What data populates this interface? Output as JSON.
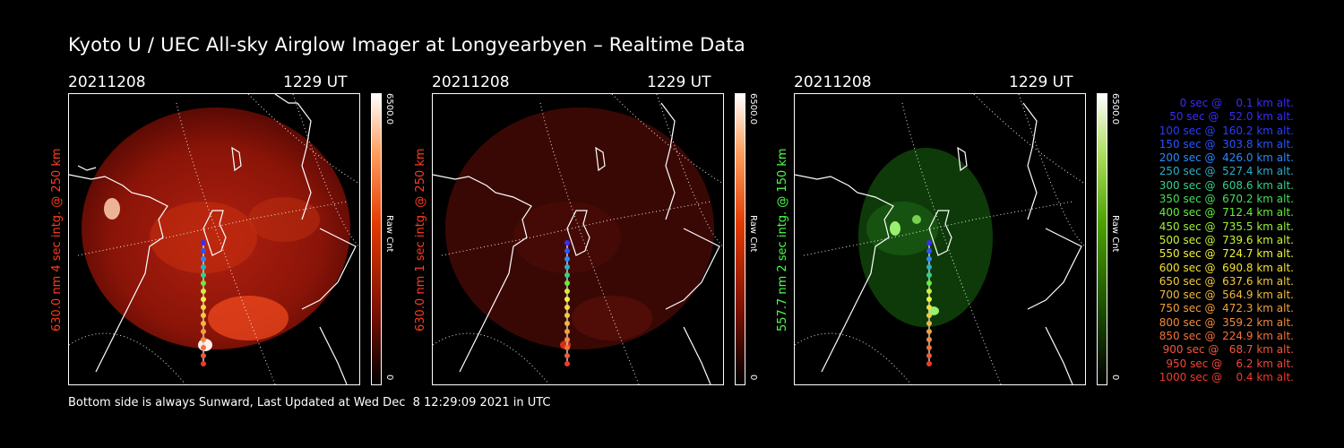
{
  "title": "Kyoto U / UEC All-sky Airglow Imager at Longyearbyen – Realtime Data",
  "footer": "Bottom side is always Sunward, Last Updated at Wed Dec  8 12:29:09 2021 in UTC",
  "panels": [
    {
      "date": "20211208",
      "time": "1229 UT",
      "side_label": "630.0 nm 4 sec intg. @ 250 km",
      "side_color": "#ff3b1f",
      "cbar_max": "6500.0",
      "cbar_min": "0",
      "cbar_unit": "Raw Cnt",
      "tone": "red-bright"
    },
    {
      "date": "20211208",
      "time": "1229 UT",
      "side_label": "630.0 nm 1 sec intg. @ 250 km",
      "side_color": "#ff3b1f",
      "cbar_max": "6500.0",
      "cbar_min": "0",
      "cbar_unit": "Raw Cnt",
      "tone": "red-dim"
    },
    {
      "date": "20211208",
      "time": "1229 UT",
      "side_label": "557.7 nm 2 sec intg. @ 150 km",
      "side_color": "#4cff4c",
      "cbar_max": "6500.0",
      "cbar_min": "0",
      "cbar_unit": "Raw Cnt",
      "tone": "green"
    }
  ],
  "legend": [
    {
      "text": "   0 sec @    0.1 km alt.",
      "color": "#3a2bff"
    },
    {
      "text": "  50 sec @   52.0 km alt.",
      "color": "#3a2bff"
    },
    {
      "text": " 100 sec @  160.2 km alt.",
      "color": "#2a3cff"
    },
    {
      "text": " 150 sec @  303.8 km alt.",
      "color": "#2a55ff"
    },
    {
      "text": " 200 sec @  426.0 km alt.",
      "color": "#2a88ff"
    },
    {
      "text": " 250 sec @  527.4 km alt.",
      "color": "#2ab0c8"
    },
    {
      "text": " 300 sec @  608.6 km alt.",
      "color": "#33d088"
    },
    {
      "text": " 350 sec @  670.2 km alt.",
      "color": "#44e05a"
    },
    {
      "text": " 400 sec @  712.4 km alt.",
      "color": "#66ee3a"
    },
    {
      "text": " 450 sec @  735.5 km alt.",
      "color": "#99f23a"
    },
    {
      "text": " 500 sec @  739.6 km alt.",
      "color": "#ccf23a"
    },
    {
      "text": " 550 sec @  724.7 km alt.",
      "color": "#f2f23a"
    },
    {
      "text": " 600 sec @  690.8 km alt.",
      "color": "#f2e03a"
    },
    {
      "text": " 650 sec @  637.6 km alt.",
      "color": "#f2cc3a"
    },
    {
      "text": " 700 sec @  564.9 km alt.",
      "color": "#f2b83a"
    },
    {
      "text": " 750 sec @  472.3 km alt.",
      "color": "#f2a03a"
    },
    {
      "text": " 800 sec @  359.2 km alt.",
      "color": "#f28a3a"
    },
    {
      "text": " 850 sec @  224.9 km alt.",
      "color": "#f2703a"
    },
    {
      "text": " 900 sec @   68.7 km alt.",
      "color": "#f2583a"
    },
    {
      "text": " 950 sec @    6.2 km alt.",
      "color": "#f2483a"
    },
    {
      "text": "1000 sec @    0.4 km alt.",
      "color": "#f23a2a"
    }
  ]
}
